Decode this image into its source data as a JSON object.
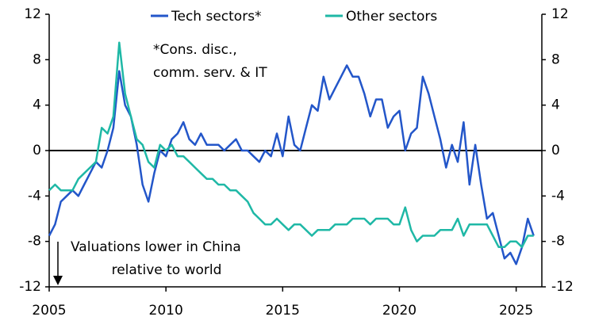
{
  "chart_data": {
    "type": "line",
    "x": [
      2005,
      2005.25,
      2005.5,
      2005.75,
      2006,
      2006.25,
      2006.5,
      2006.75,
      2007,
      2007.25,
      2007.5,
      2007.75,
      2008,
      2008.25,
      2008.5,
      2008.75,
      2009,
      2009.25,
      2009.5,
      2009.75,
      2010,
      2010.25,
      2010.5,
      2010.75,
      2011,
      2011.25,
      2011.5,
      2011.75,
      2012,
      2012.25,
      2012.5,
      2012.75,
      2013,
      2013.25,
      2013.5,
      2013.75,
      2014,
      2014.25,
      2014.5,
      2014.75,
      2015,
      2015.25,
      2015.5,
      2015.75,
      2016,
      2016.25,
      2016.5,
      2016.75,
      2017,
      2017.25,
      2017.5,
      2017.75,
      2018,
      2018.25,
      2018.5,
      2018.75,
      2019,
      2019.25,
      2019.5,
      2019.75,
      2020,
      2020.25,
      2020.5,
      2020.75,
      2021,
      2021.25,
      2021.5,
      2021.75,
      2022,
      2022.25,
      2022.5,
      2022.75,
      2023,
      2023.25,
      2023.5,
      2023.75,
      2024,
      2024.25,
      2024.5,
      2024.75,
      2025,
      2025.25,
      2025.5,
      2025.75
    ],
    "series": [
      {
        "name": "Tech sectors*",
        "color": "#2356c9",
        "values": [
          -7.5,
          -6.5,
          -4.5,
          -4,
          -3.5,
          -4,
          -3,
          -2,
          -1,
          -1.5,
          0,
          2,
          7,
          4,
          3,
          0.5,
          -3,
          -4.5,
          -2,
          0,
          -0.5,
          1,
          1.5,
          2.5,
          1,
          0.5,
          1.5,
          0.5,
          0.5,
          0.5,
          0,
          0.5,
          1,
          0,
          0,
          -0.5,
          -1,
          0,
          -0.5,
          1.5,
          -0.5,
          3,
          0.5,
          0,
          2,
          4,
          3.5,
          6.5,
          4.5,
          5.5,
          6.5,
          7.5,
          6.5,
          6.5,
          5,
          3,
          4.5,
          4.5,
          2,
          3,
          3.5,
          0,
          1.5,
          2,
          6.5,
          5,
          3,
          1,
          -1.5,
          0.5,
          -1,
          2.5,
          -3,
          0.5,
          -3,
          -6,
          -5.5,
          -7.5,
          -9.5,
          -9,
          -10,
          -8.5,
          -6,
          -7.5
        ]
      },
      {
        "name": "Other sectors",
        "color": "#1fb8a6",
        "values": [
          -3.5,
          -3,
          -3.5,
          -3.5,
          -3.5,
          -2.5,
          -2,
          -1.5,
          -1,
          2,
          1.5,
          3,
          9.5,
          5,
          3,
          1,
          0.5,
          -1,
          -1.5,
          0.5,
          0,
          0.5,
          -0.5,
          -0.5,
          -1,
          -1.5,
          -2,
          -2.5,
          -2.5,
          -3,
          -3,
          -3.5,
          -3.5,
          -4,
          -4.5,
          -5.5,
          -6,
          -6.5,
          -6.5,
          -6,
          -6.5,
          -7,
          -6.5,
          -6.5,
          -7,
          -7.5,
          -7,
          -7,
          -7,
          -6.5,
          -6.5,
          -6.5,
          -6,
          -6,
          -6,
          -6.5,
          -6,
          -6,
          -6,
          -6.5,
          -6.5,
          -5,
          -7,
          -8,
          -7.5,
          -7.5,
          -7.5,
          -7,
          -7,
          -7,
          -6,
          -7.5,
          -6.5,
          -6.5,
          -6.5,
          -6.5,
          -7.5,
          -8.5,
          -8.5,
          -8,
          -8,
          -8.5,
          -7.5,
          -7.5
        ]
      }
    ],
    "xlim": [
      2005,
      2026.1
    ],
    "xticks": [
      2005,
      2010,
      2015,
      2020,
      2025
    ],
    "ylim": [
      -12,
      12
    ],
    "yticks": [
      -12,
      -8,
      -4,
      0,
      4,
      8,
      12
    ],
    "y2lim": [
      -12,
      12
    ],
    "y2ticks": [
      -12,
      -8,
      -4,
      0,
      4,
      8,
      12
    ],
    "annotations": [
      [
        "*Cons. disc.,",
        "comm. serv. & IT"
      ],
      [
        "Valuations lower in China",
        "relative to world"
      ]
    ],
    "legend": "top"
  }
}
